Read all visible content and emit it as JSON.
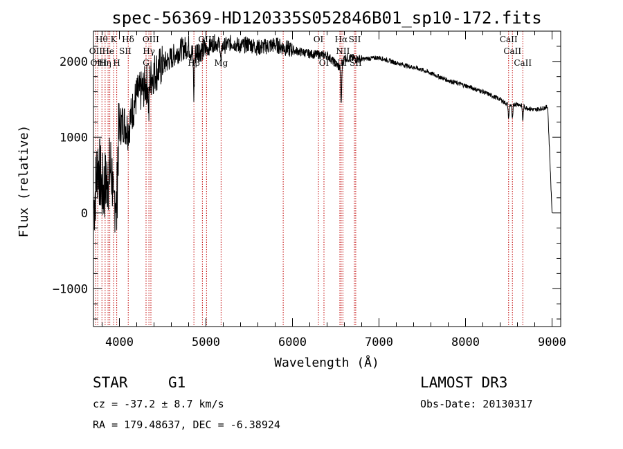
{
  "chart_data": {
    "type": "line",
    "title": "spec-56369-HD120335S052846B01_sp10-172.fits",
    "xlabel": "Wavelength (Å)",
    "ylabel": "Flux (relative)",
    "xlim": [
      3700,
      9100
    ],
    "ylim": [
      -1500,
      2400
    ],
    "xticks": [
      4000,
      5000,
      6000,
      7000,
      8000,
      9000
    ],
    "yticks": [
      -1000,
      0,
      1000,
      2000
    ],
    "series": [
      {
        "name": "spectrum",
        "anchors_x": [
          3700,
          3750,
          3800,
          3850,
          3900,
          3950,
          4000,
          4050,
          4100,
          4150,
          4200,
          4250,
          4300,
          4350,
          4400,
          4500,
          4600,
          4700,
          4800,
          4860,
          4900,
          5000,
          5100,
          5200,
          5300,
          5400,
          5500,
          5600,
          5800,
          6000,
          6200,
          6400,
          6562,
          6600,
          6800,
          7000,
          7200,
          7500,
          7800,
          8000,
          8200,
          8400,
          8500,
          8600,
          8700,
          8800,
          8950,
          9000
        ],
        "anchors_y": [
          0,
          700,
          300,
          400,
          600,
          200,
          1150,
          1200,
          1100,
          1350,
          1550,
          1600,
          1680,
          1750,
          1850,
          1950,
          2050,
          2150,
          2200,
          2050,
          2150,
          2150,
          2250,
          2200,
          2250,
          2200,
          2230,
          2180,
          2220,
          2150,
          2100,
          2080,
          1900,
          2050,
          2030,
          2050,
          1980,
          1890,
          1750,
          1680,
          1600,
          1500,
          1420,
          1440,
          1390,
          1360,
          1400,
          0
        ],
        "absorption_dips": [
          {
            "x": 3933,
            "depth": 500
          },
          {
            "x": 3968,
            "depth": 600
          },
          {
            "x": 4340,
            "depth": 450
          },
          {
            "x": 4861,
            "depth": 550
          },
          {
            "x": 5175,
            "depth": 300
          },
          {
            "x": 6563,
            "depth": 500
          },
          {
            "x": 8498,
            "depth": 180
          },
          {
            "x": 8542,
            "depth": 220
          },
          {
            "x": 8662,
            "depth": 200
          }
        ]
      }
    ],
    "line_markers": [
      3727,
      3750,
      3798,
      3835,
      3869,
      3889,
      3934,
      3969,
      4102,
      4308,
      4341,
      4364,
      4861,
      4959,
      5007,
      5175,
      5893,
      6300,
      6364,
      6548,
      6563,
      6583,
      6716,
      6731,
      8498,
      8542,
      8662
    ],
    "line_labels": [
      {
        "text": "Hθ",
        "x": 3795,
        "row": 0
      },
      {
        "text": "K",
        "x": 3933,
        "row": 0
      },
      {
        "text": "Hδ",
        "x": 4100,
        "row": 0
      },
      {
        "text": "OIII",
        "x": 4363,
        "row": 0
      },
      {
        "text": "OIII",
        "x": 5007,
        "row": 0
      },
      {
        "text": "OI",
        "x": 6300,
        "row": 0
      },
      {
        "text": "Hα",
        "x": 6563,
        "row": 0
      },
      {
        "text": "SII",
        "x": 6720,
        "row": 0
      },
      {
        "text": "CaII",
        "x": 8498,
        "row": 0
      },
      {
        "text": "OII",
        "x": 3727,
        "row": 1
      },
      {
        "text": "He",
        "x": 3870,
        "row": 1
      },
      {
        "text": "SII",
        "x": 4068,
        "row": 1
      },
      {
        "text": "Hγ",
        "x": 4341,
        "row": 1
      },
      {
        "text": "NII",
        "x": 6583,
        "row": 1
      },
      {
        "text": "CaII",
        "x": 8542,
        "row": 1
      },
      {
        "text": "OIII",
        "x": 3760,
        "row": 2
      },
      {
        "text": "Hη",
        "x": 3835,
        "row": 2
      },
      {
        "text": "H",
        "x": 3969,
        "row": 2
      },
      {
        "text": "G",
        "x": 4307,
        "row": 2
      },
      {
        "text": "Hβ",
        "x": 4861,
        "row": 2
      },
      {
        "text": "Mg",
        "x": 5175,
        "row": 2
      },
      {
        "text": "OI",
        "x": 6364,
        "row": 2
      },
      {
        "text": "NII",
        "x": 6548,
        "row": 2
      },
      {
        "text": "SII",
        "x": 6731,
        "row": 2
      },
      {
        "text": "CaII",
        "x": 8662,
        "row": 2
      }
    ]
  },
  "info": {
    "class": "STAR",
    "subclass": "G1",
    "survey": "LAMOST DR3",
    "cz": "cz = -37.2 ± 8.7 km/s",
    "obs_date": "Obs-Date: 20130317",
    "coords": "RA = 179.48637, DEC =  -6.38924"
  }
}
